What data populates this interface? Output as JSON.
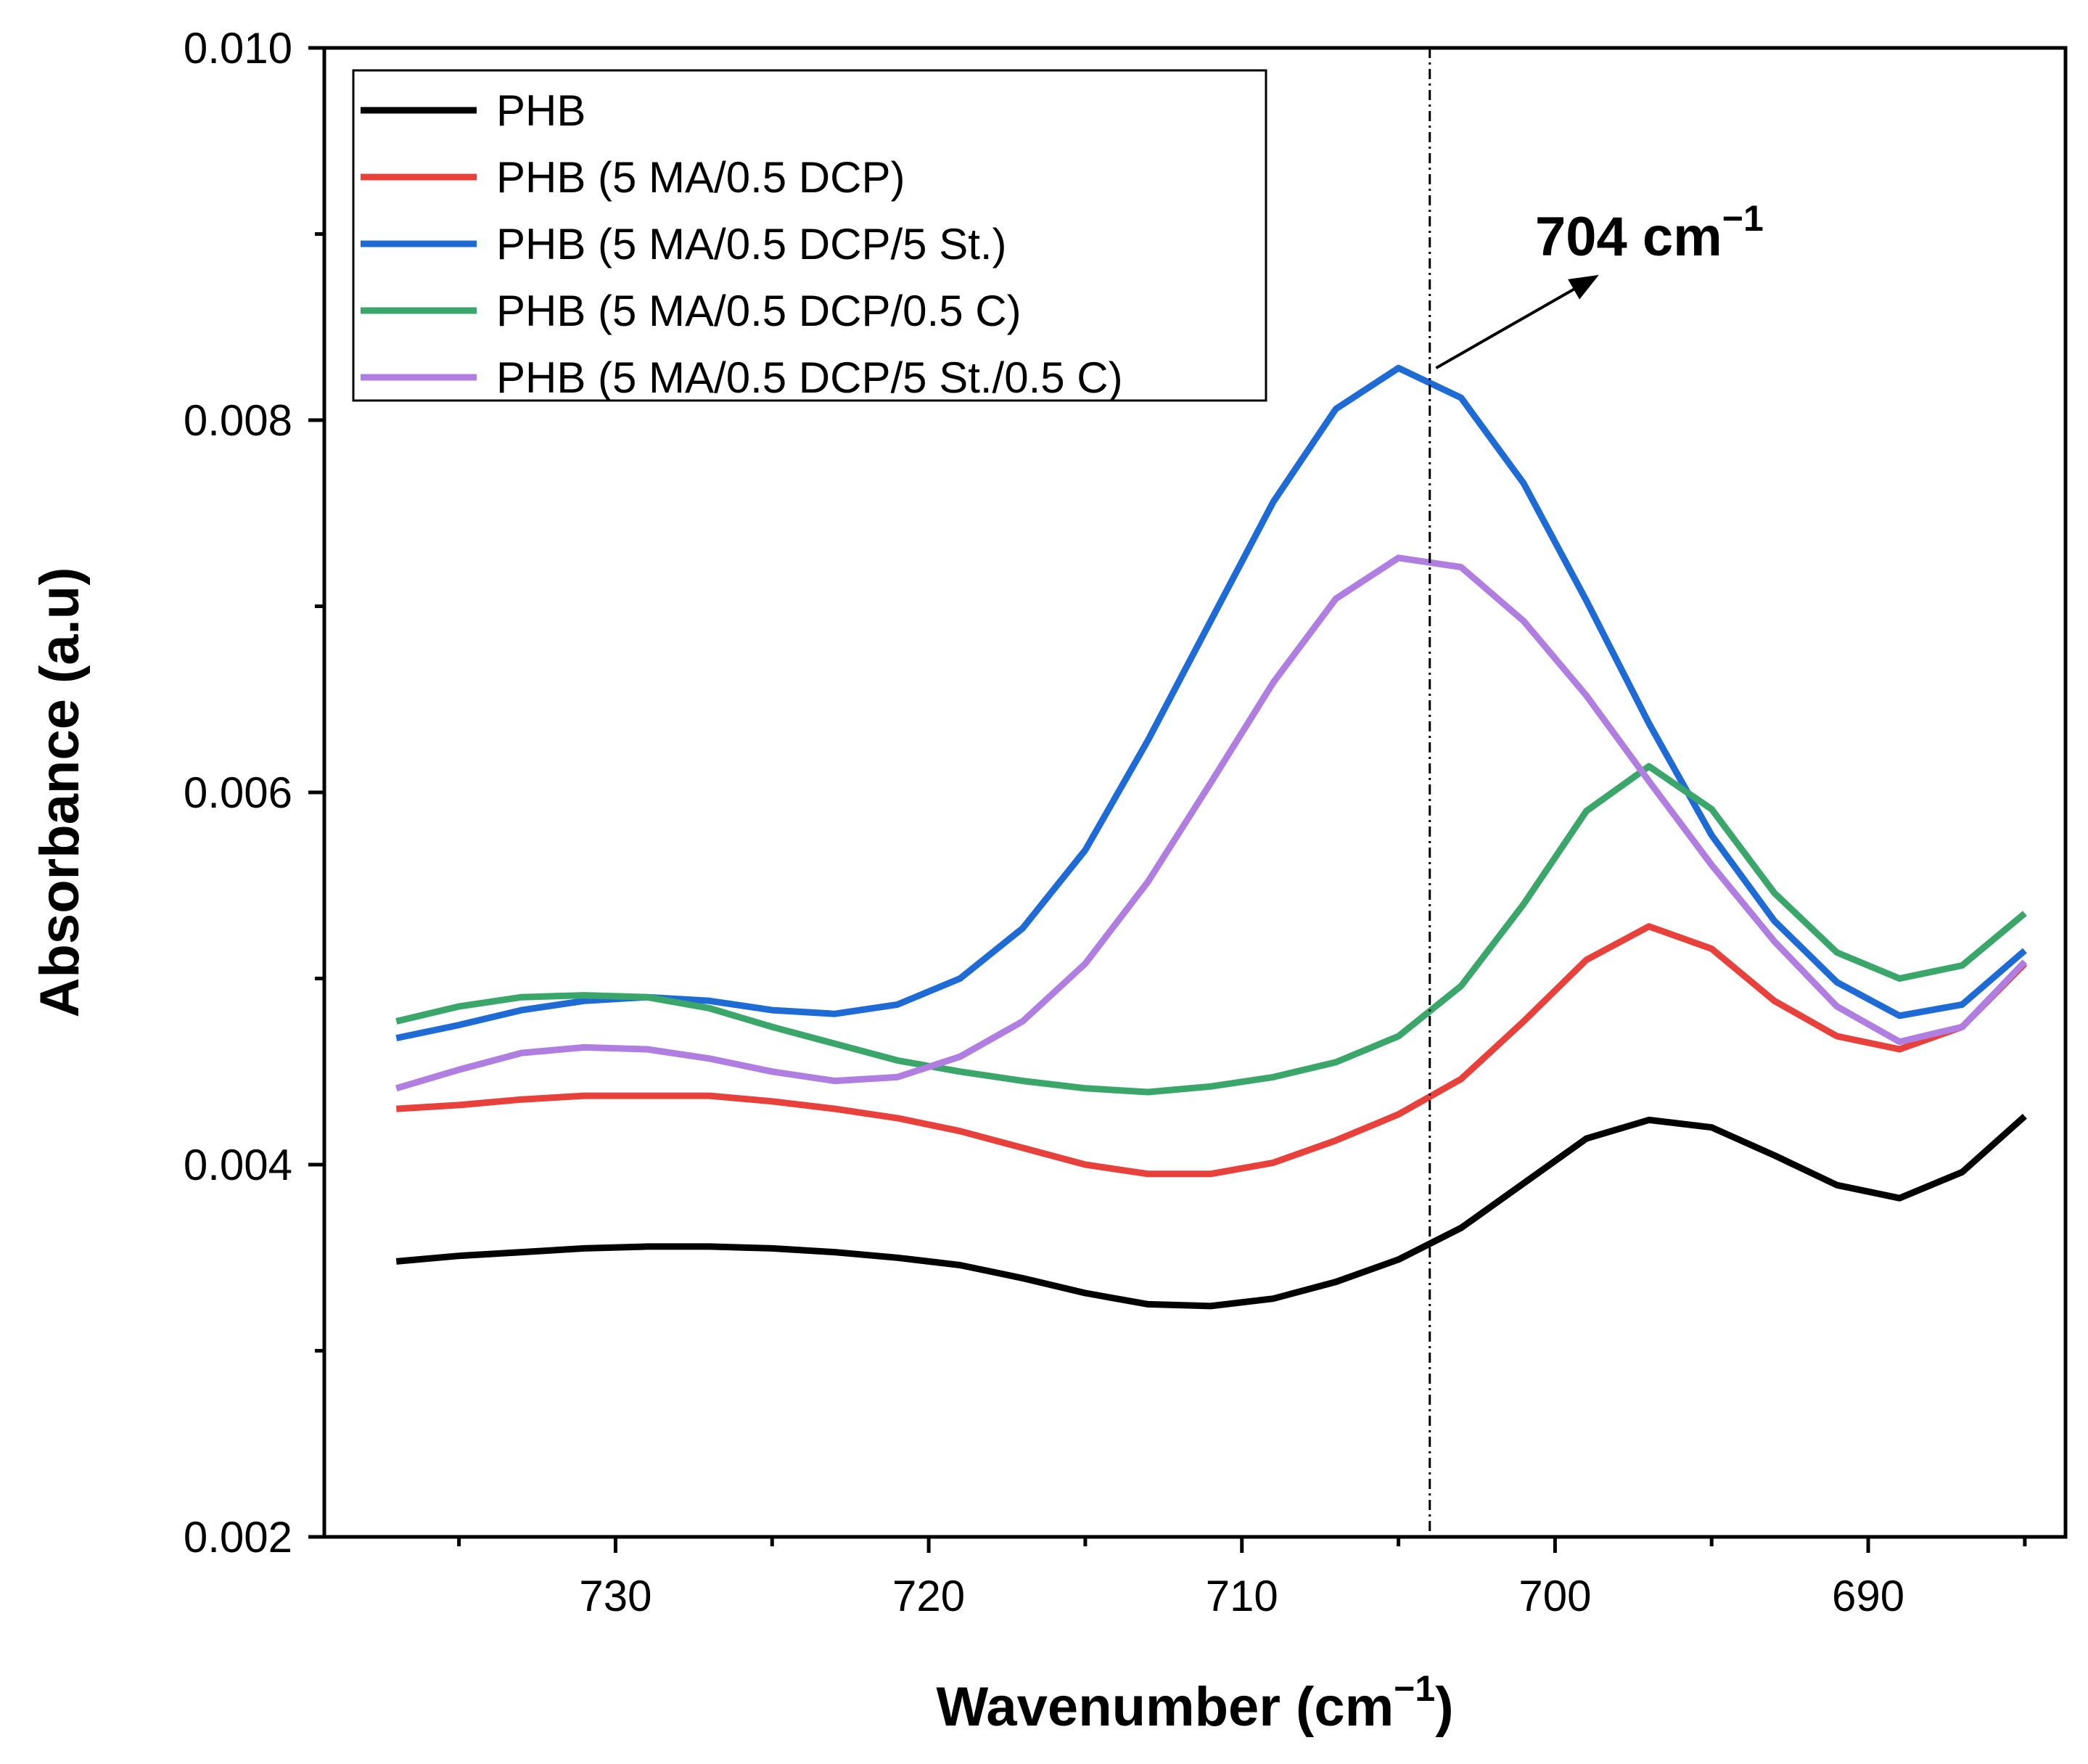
{
  "chart_data": {
    "type": "line",
    "title": "",
    "xlabel": "Wavenumber (cm",
    "xlabel_sup": "−1",
    "xlabel_suffix": ")",
    "ylabel": "Absorbance (a.u)",
    "xlim": [
      739.3,
      683.7
    ],
    "ylim": [
      0.002,
      0.01
    ],
    "x_ticks": [
      730,
      720,
      710,
      700,
      690
    ],
    "x_tick_labels": [
      "730",
      "720",
      "710",
      "700",
      "690"
    ],
    "x_minor_ticks": [
      735,
      725,
      715,
      705,
      695,
      685
    ],
    "y_ticks": [
      0.002,
      0.004,
      0.006,
      0.008,
      0.01
    ],
    "y_tick_labels": [
      "0.002",
      "0.004",
      "0.006",
      "0.008",
      "0.010"
    ],
    "y_minor_ticks": [
      0.003,
      0.005,
      0.007,
      0.009
    ],
    "x": [
      737,
      735,
      733,
      731,
      729,
      727,
      725,
      723,
      721,
      719,
      717,
      715,
      713,
      711,
      709,
      707,
      705,
      703,
      701,
      699,
      697,
      695,
      693,
      691,
      689,
      687,
      685,
      683
    ],
    "series": [
      {
        "name": "PHB",
        "color": "#000000",
        "values": [
          0.00348,
          0.00351,
          0.00353,
          0.00355,
          0.00356,
          0.00356,
          0.00355,
          0.00353,
          0.0035,
          0.00346,
          0.00339,
          0.00331,
          0.00325,
          0.00324,
          0.00328,
          0.00337,
          0.00349,
          0.00366,
          0.0039,
          0.00414,
          0.00424,
          0.0042,
          0.00405,
          0.00389,
          0.00382,
          0.00396,
          0.00426,
          null
        ]
      },
      {
        "name": "PHB (5 MA/0.5 DCP)",
        "color": "#e8413c",
        "values": [
          0.0043,
          0.00432,
          0.00435,
          0.00437,
          0.00437,
          0.00437,
          0.00434,
          0.0043,
          0.00425,
          0.00418,
          0.00409,
          0.004,
          0.00395,
          0.00395,
          0.00401,
          0.00413,
          0.00427,
          0.00446,
          0.00477,
          0.0051,
          0.00528,
          0.00516,
          0.00488,
          0.00469,
          0.00462,
          0.00474,
          0.00508,
          null
        ]
      },
      {
        "name": "PHB (5 MA/0.5 DCP/5 St.)",
        "color": "#1f6bd6",
        "values": [
          0.00468,
          0.00475,
          0.00483,
          0.00488,
          0.0049,
          0.00488,
          0.00483,
          0.00481,
          0.00486,
          0.005,
          0.00527,
          0.00569,
          0.00628,
          0.00692,
          0.00756,
          0.00806,
          0.00828,
          0.00812,
          0.00766,
          0.00703,
          0.00637,
          0.00577,
          0.00531,
          0.00498,
          0.0048,
          0.00486,
          0.00515,
          null
        ]
      },
      {
        "name": "PHB (5 MA/0.5 DCP/0.5 C)",
        "color": "#3aa66a",
        "values": [
          0.00477,
          0.00485,
          0.0049,
          0.00491,
          0.0049,
          0.00484,
          0.00474,
          0.00465,
          0.00456,
          0.0045,
          0.00445,
          0.00441,
          0.00439,
          0.00442,
          0.00447,
          0.00455,
          0.00469,
          0.00496,
          0.0054,
          0.0059,
          0.00614,
          0.00591,
          0.00546,
          0.00514,
          0.005,
          0.00507,
          0.00535,
          null
        ]
      },
      {
        "name": "PHB (5 MA/0.5 DCP/5 St./0.5 C)",
        "color": "#b07ee0",
        "values": [
          0.00441,
          0.00451,
          0.0046,
          0.00463,
          0.00462,
          0.00457,
          0.0045,
          0.00445,
          0.00447,
          0.00458,
          0.00477,
          0.00508,
          0.00552,
          0.00605,
          0.00659,
          0.00704,
          0.00726,
          0.00721,
          0.00692,
          0.00652,
          0.00606,
          0.00561,
          0.0052,
          0.00485,
          0.00466,
          0.00474,
          0.00509,
          null
        ]
      }
    ],
    "legend": {
      "position": "top-left",
      "entries": [
        "PHB",
        "PHB (5 MA/0.5 DCP)",
        "PHB (5 MA/0.5 DCP/5 St.)",
        "PHB (5 MA/0.5 DCP/0.5 C)",
        "PHB (5 MA/0.5 DCP/5 St./0.5 C)"
      ]
    },
    "annotation": {
      "text": "704 cm",
      "sup": "−1",
      "vline_x": 704,
      "arrow_from": [
        703.8,
        0.00828
      ],
      "arrow_to": [
        698.6,
        0.00878
      ]
    },
    "grid": false
  }
}
